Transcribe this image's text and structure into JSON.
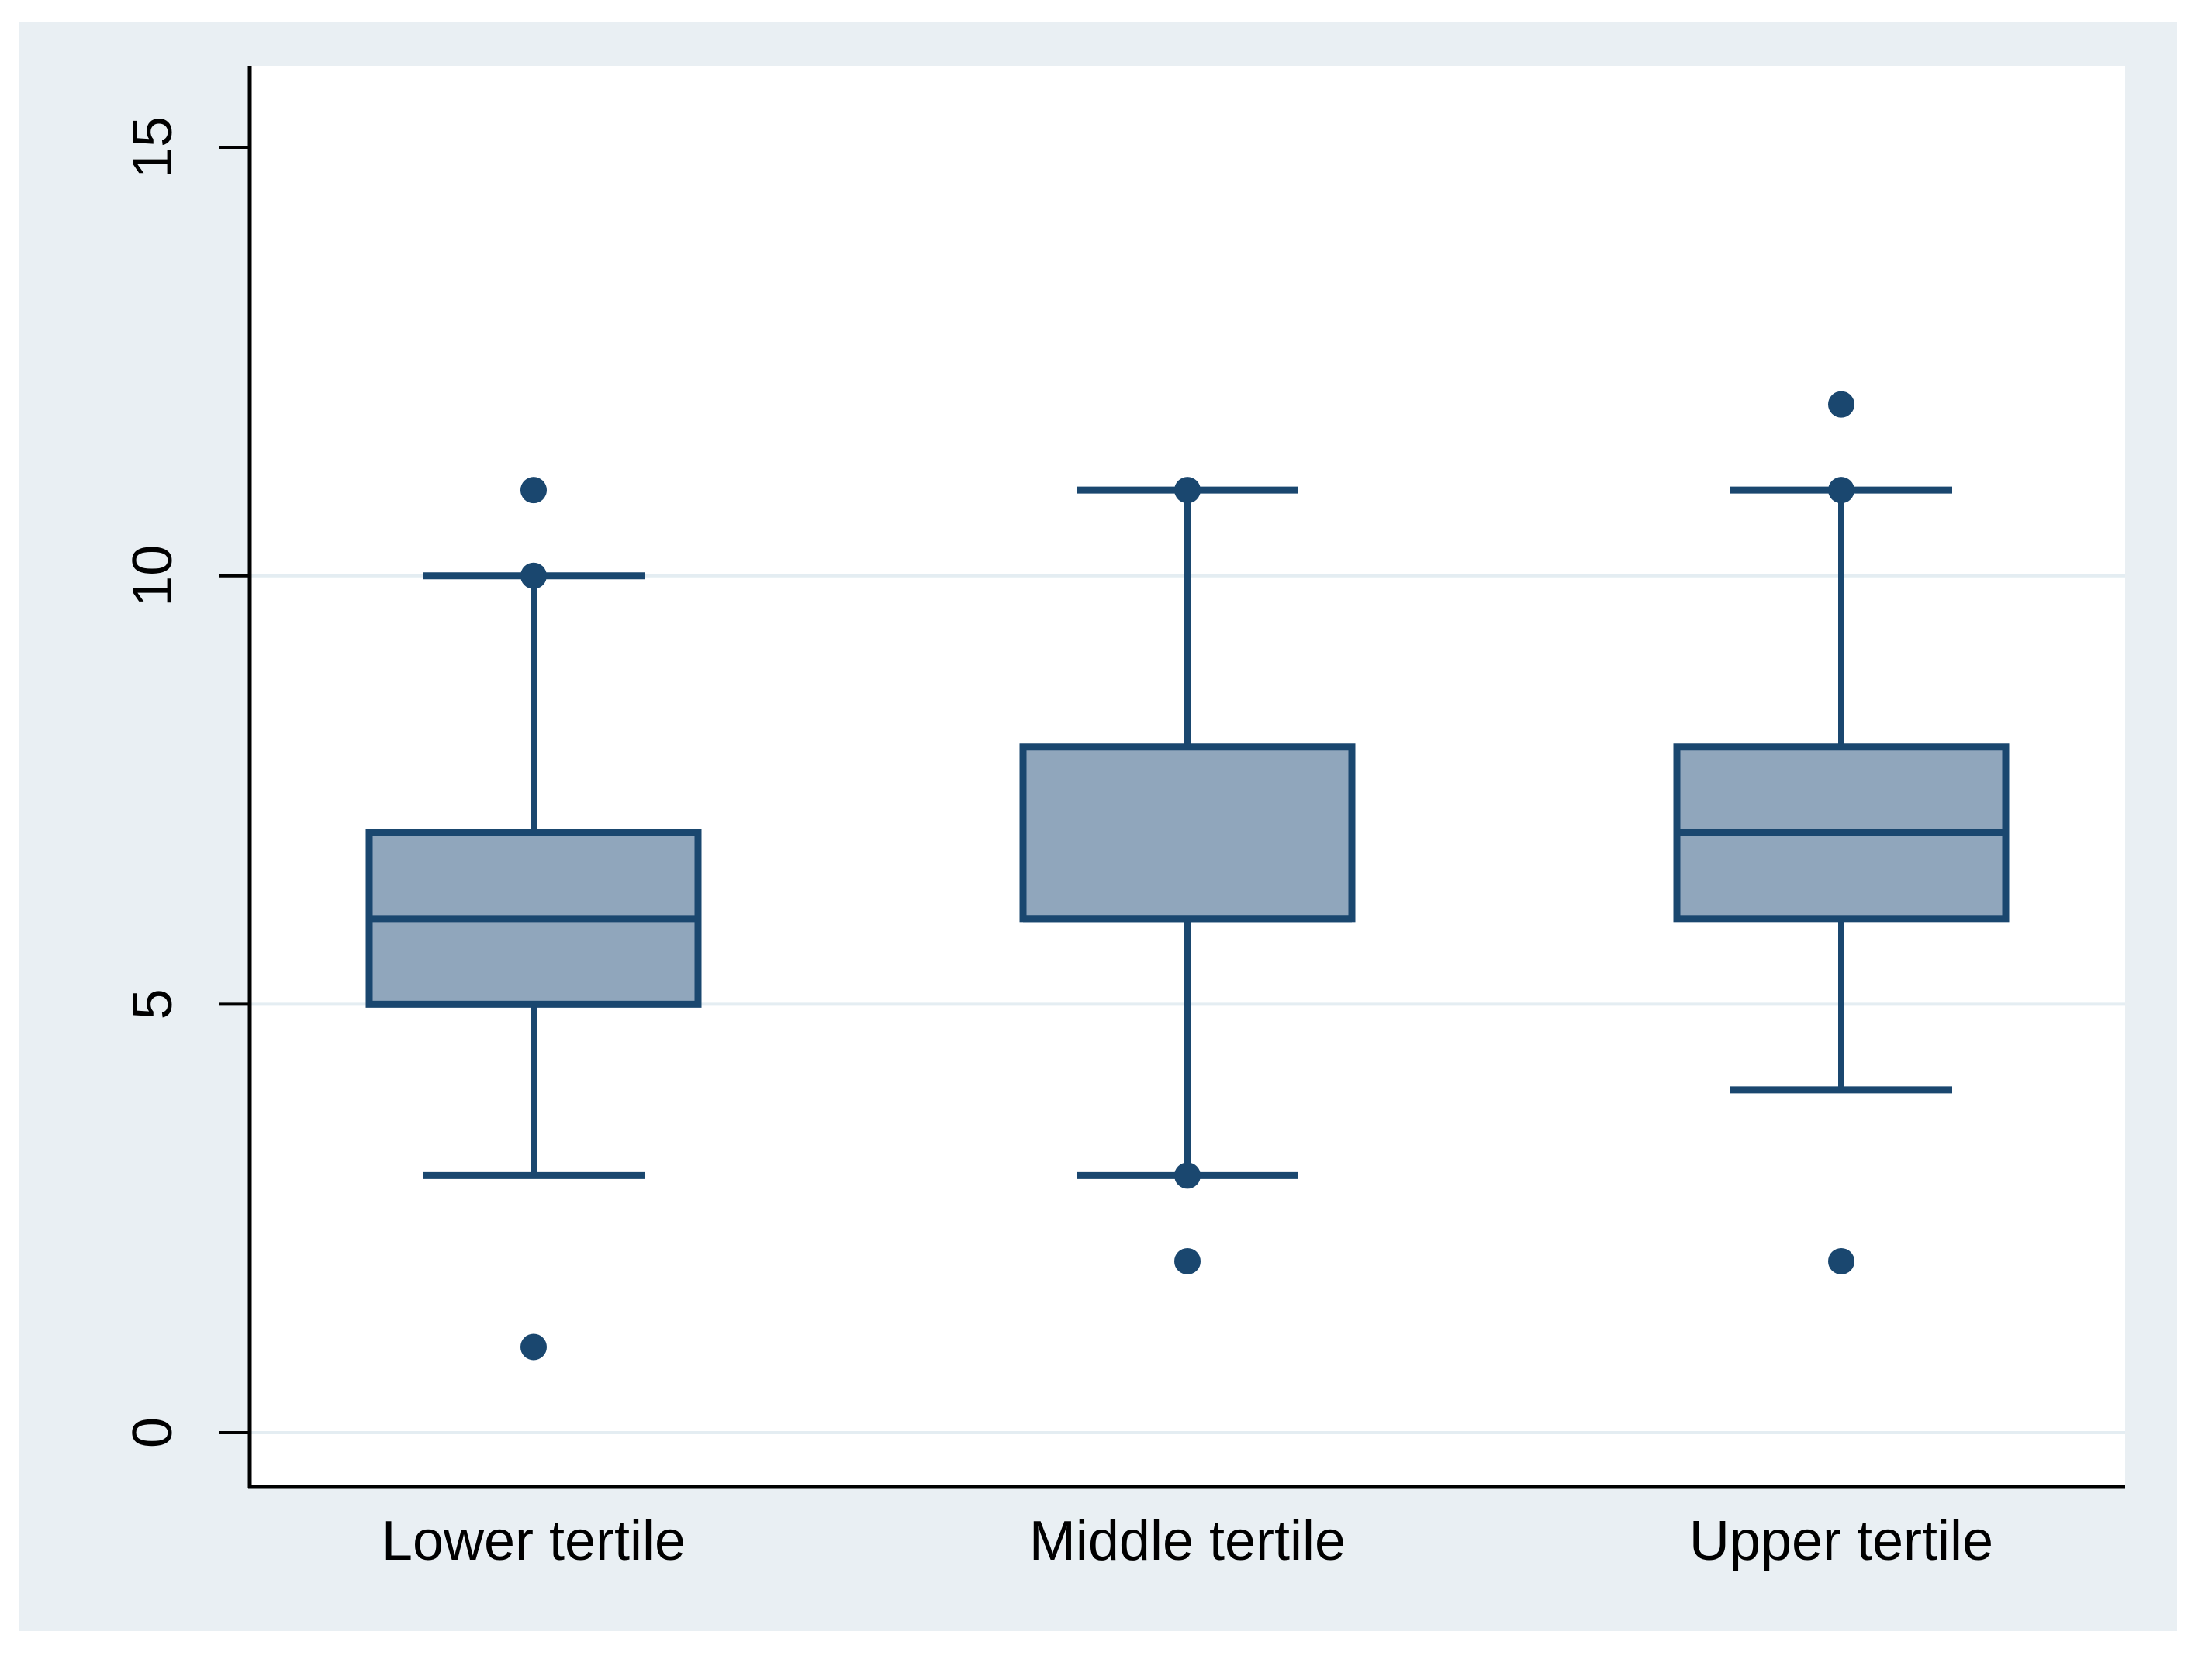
{
  "figure": {
    "background_color": "#e9eff3",
    "plot_background_color": "#ffffff",
    "axis_color": "#000000"
  },
  "chart_data": {
    "type": "box",
    "title": "",
    "xlabel": "",
    "ylabel": "",
    "categories": [
      "Lower tertile",
      "Middle tertile",
      "Upper tertile"
    ],
    "y_axis": {
      "ticks": [
        0,
        5,
        10,
        15
      ],
      "tick_labels": [
        "0",
        "5",
        "10",
        "15"
      ],
      "grid_ticks": [
        0,
        5,
        10
      ],
      "range": [
        -0.65,
        15.95
      ],
      "grid_on": true,
      "tick_label_rotation_deg": -90
    },
    "series": [
      {
        "label": "Lower tertile",
        "whisker_low": 3,
        "q1": 5,
        "median": 6,
        "q3": 7,
        "whisker_high": 10,
        "outliers": [
          11,
          10,
          1
        ]
      },
      {
        "label": "Middle tertile",
        "whisker_low": 3,
        "q1": 6,
        "median": 6,
        "q3": 8,
        "whisker_high": 11,
        "outliers": [
          11,
          3,
          2
        ]
      },
      {
        "label": "Upper tertile",
        "whisker_low": 4,
        "q1": 6,
        "median": 7,
        "q3": 8,
        "whisker_high": 11,
        "outliers": [
          12,
          11,
          2
        ]
      }
    ],
    "colors": {
      "box_fill": "#90a6bc",
      "box_stroke": "#1a476f",
      "whisker": "#1a476f",
      "outlier_dot": "#1a476f",
      "gridline": "#e4edf2"
    },
    "legend": {
      "visible": false
    }
  }
}
